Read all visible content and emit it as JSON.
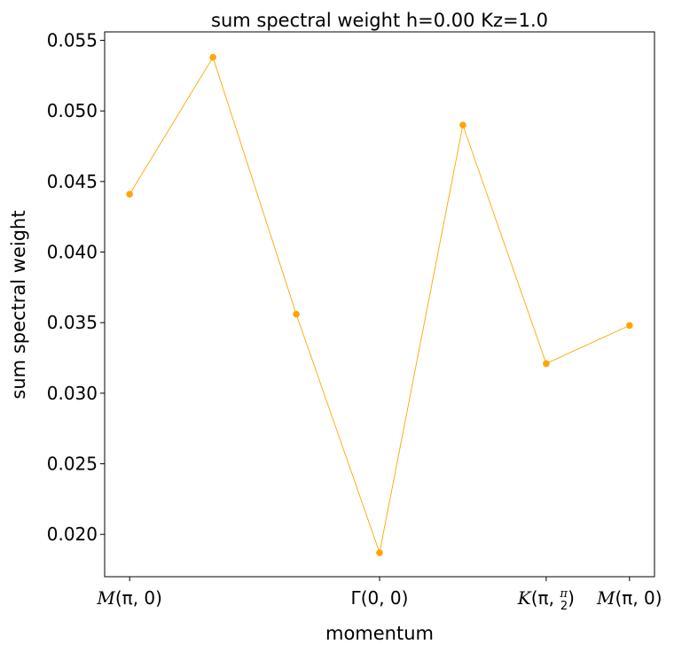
{
  "chart_data": {
    "type": "line",
    "title": "sum spectral weight h=0.00 Kz=1.0",
    "xlabel": "momentum",
    "ylabel": "sum spectral weight",
    "x": [
      0,
      1,
      2,
      3,
      4,
      5,
      6
    ],
    "values": [
      0.0441,
      0.0538,
      0.0356,
      0.0187,
      0.049,
      0.0321,
      0.0348
    ],
    "ylim": [
      0.017,
      0.0556
    ],
    "xlim": [
      -0.3,
      6.3
    ],
    "yticks": [
      0.02,
      0.025,
      0.03,
      0.035,
      0.04,
      0.045,
      0.05,
      0.055
    ],
    "ytick_labels": [
      "0.020",
      "0.025",
      "0.030",
      "0.035",
      "0.040",
      "0.045",
      "0.050",
      "0.055"
    ],
    "xticks": [
      {
        "x": 0,
        "prefix": "M",
        "args": "(π, 0)"
      },
      {
        "x": 3,
        "prefix": "Γ",
        "args": "(0, 0)"
      },
      {
        "x": 5,
        "prefix": "K",
        "args_pre": "(π, ",
        "frac_num": "π",
        "frac_den": "2",
        "args_post": ")"
      },
      {
        "x": 6,
        "prefix": "M",
        "args": "(π, 0)"
      }
    ],
    "line_color": "#ffa500",
    "marker_color": "#ffa500",
    "grid": false
  }
}
